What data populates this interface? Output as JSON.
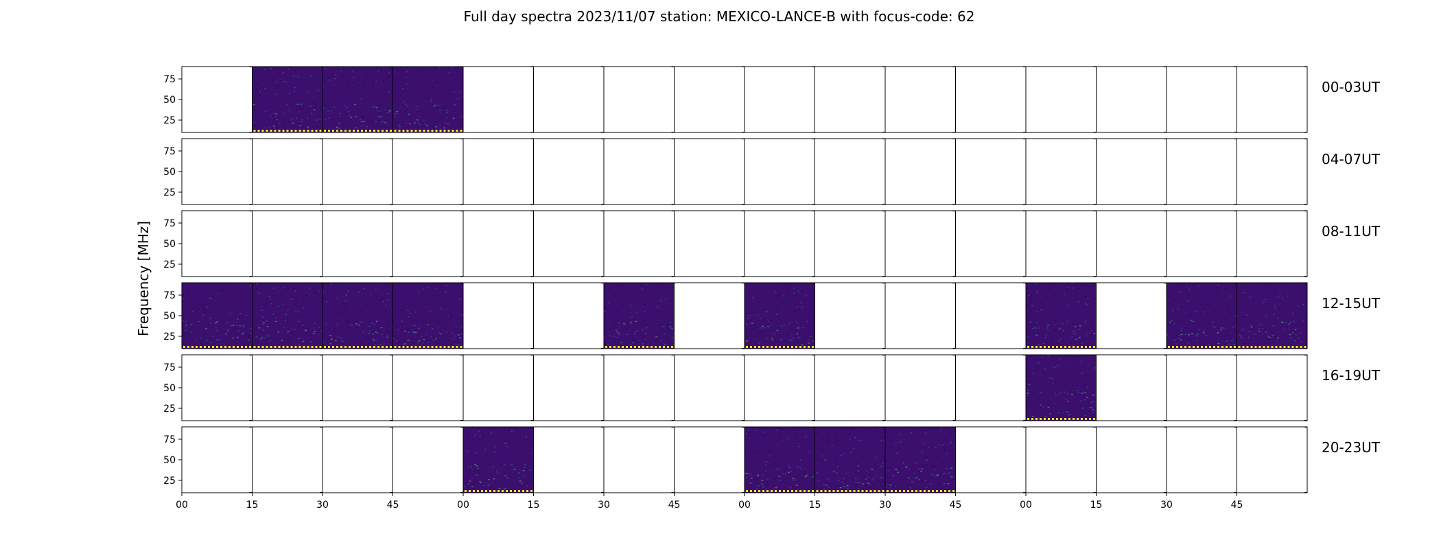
{
  "chart_data": {
    "type": "heatmap",
    "title": "Full day spectra 2023/11/07 station: MEXICO-LANCE-B with focus-code: 62",
    "ylabel": "Frequency [MHz]",
    "xlabel": "",
    "ylim": [
      10,
      90
    ],
    "y_ticks": [
      25,
      50,
      75
    ],
    "y_tick_labels": [
      "25",
      "50",
      "75"
    ],
    "x_tick_labels": [
      "00",
      "15",
      "30",
      "45",
      "00",
      "15",
      "30",
      "45",
      "00",
      "15",
      "30",
      "45",
      "00",
      "15",
      "30",
      "45"
    ],
    "rows": [
      {
        "label": "00-03UT",
        "panels": [
          0,
          1,
          1,
          1,
          0,
          0,
          0,
          0,
          0,
          0,
          0,
          0,
          0,
          0,
          0,
          0
        ]
      },
      {
        "label": "04-07UT",
        "panels": [
          0,
          0,
          0,
          0,
          0,
          0,
          0,
          0,
          0,
          0,
          0,
          0,
          0,
          0,
          0,
          0
        ]
      },
      {
        "label": "08-11UT",
        "panels": [
          0,
          0,
          0,
          0,
          0,
          0,
          0,
          0,
          0,
          0,
          0,
          0,
          0,
          0,
          0,
          0
        ]
      },
      {
        "label": "12-15UT",
        "panels": [
          1,
          1,
          1,
          1,
          0,
          0,
          1,
          0,
          1,
          0,
          0,
          0,
          1,
          0,
          1,
          1
        ]
      },
      {
        "label": "16-19UT",
        "panels": [
          0,
          0,
          0,
          0,
          0,
          0,
          0,
          0,
          0,
          0,
          0,
          0,
          1,
          0,
          0,
          0
        ]
      },
      {
        "label": "20-23UT",
        "panels": [
          0,
          0,
          0,
          0,
          1,
          0,
          0,
          0,
          1,
          1,
          1,
          0,
          0,
          0,
          0,
          0
        ]
      }
    ],
    "colormap": [
      "#440154",
      "#3b528b",
      "#21918c",
      "#5ec962",
      "#fde725"
    ],
    "background_color": "#3b0f6e",
    "marker_color": "#fde725"
  }
}
